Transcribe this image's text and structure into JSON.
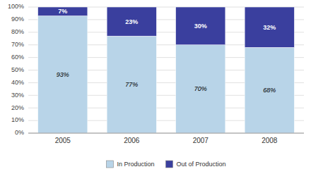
{
  "chart_data": {
    "type": "bar",
    "stacked": true,
    "categories": [
      "2005",
      "2006",
      "2007",
      "2008"
    ],
    "series": [
      {
        "name": "In Production",
        "color": "#b8d4e8",
        "values": [
          93,
          77,
          70,
          68
        ],
        "value_labels": [
          "93%",
          "77%",
          "70%",
          "68%"
        ]
      },
      {
        "name": "Out of Production",
        "color": "#3a3f9e",
        "values": [
          7,
          23,
          30,
          32
        ],
        "value_labels": [
          "7%",
          "23%",
          "30%",
          "32%"
        ]
      }
    ],
    "ylim": [
      0,
      100
    ],
    "yticks": [
      {
        "value": 0,
        "label": "0%"
      },
      {
        "value": 10,
        "label": "10%"
      },
      {
        "value": 20,
        "label": "20%"
      },
      {
        "value": 30,
        "label": "30%"
      },
      {
        "value": 40,
        "label": "40%"
      },
      {
        "value": 50,
        "label": "50%"
      },
      {
        "value": 60,
        "label": "60%"
      },
      {
        "value": 70,
        "label": "70%"
      },
      {
        "value": 80,
        "label": "80%"
      },
      {
        "value": 90,
        "label": "90%"
      },
      {
        "value": 100,
        "label": "100%"
      }
    ],
    "grid": true,
    "data_labels": true,
    "legend": "bottom"
  }
}
